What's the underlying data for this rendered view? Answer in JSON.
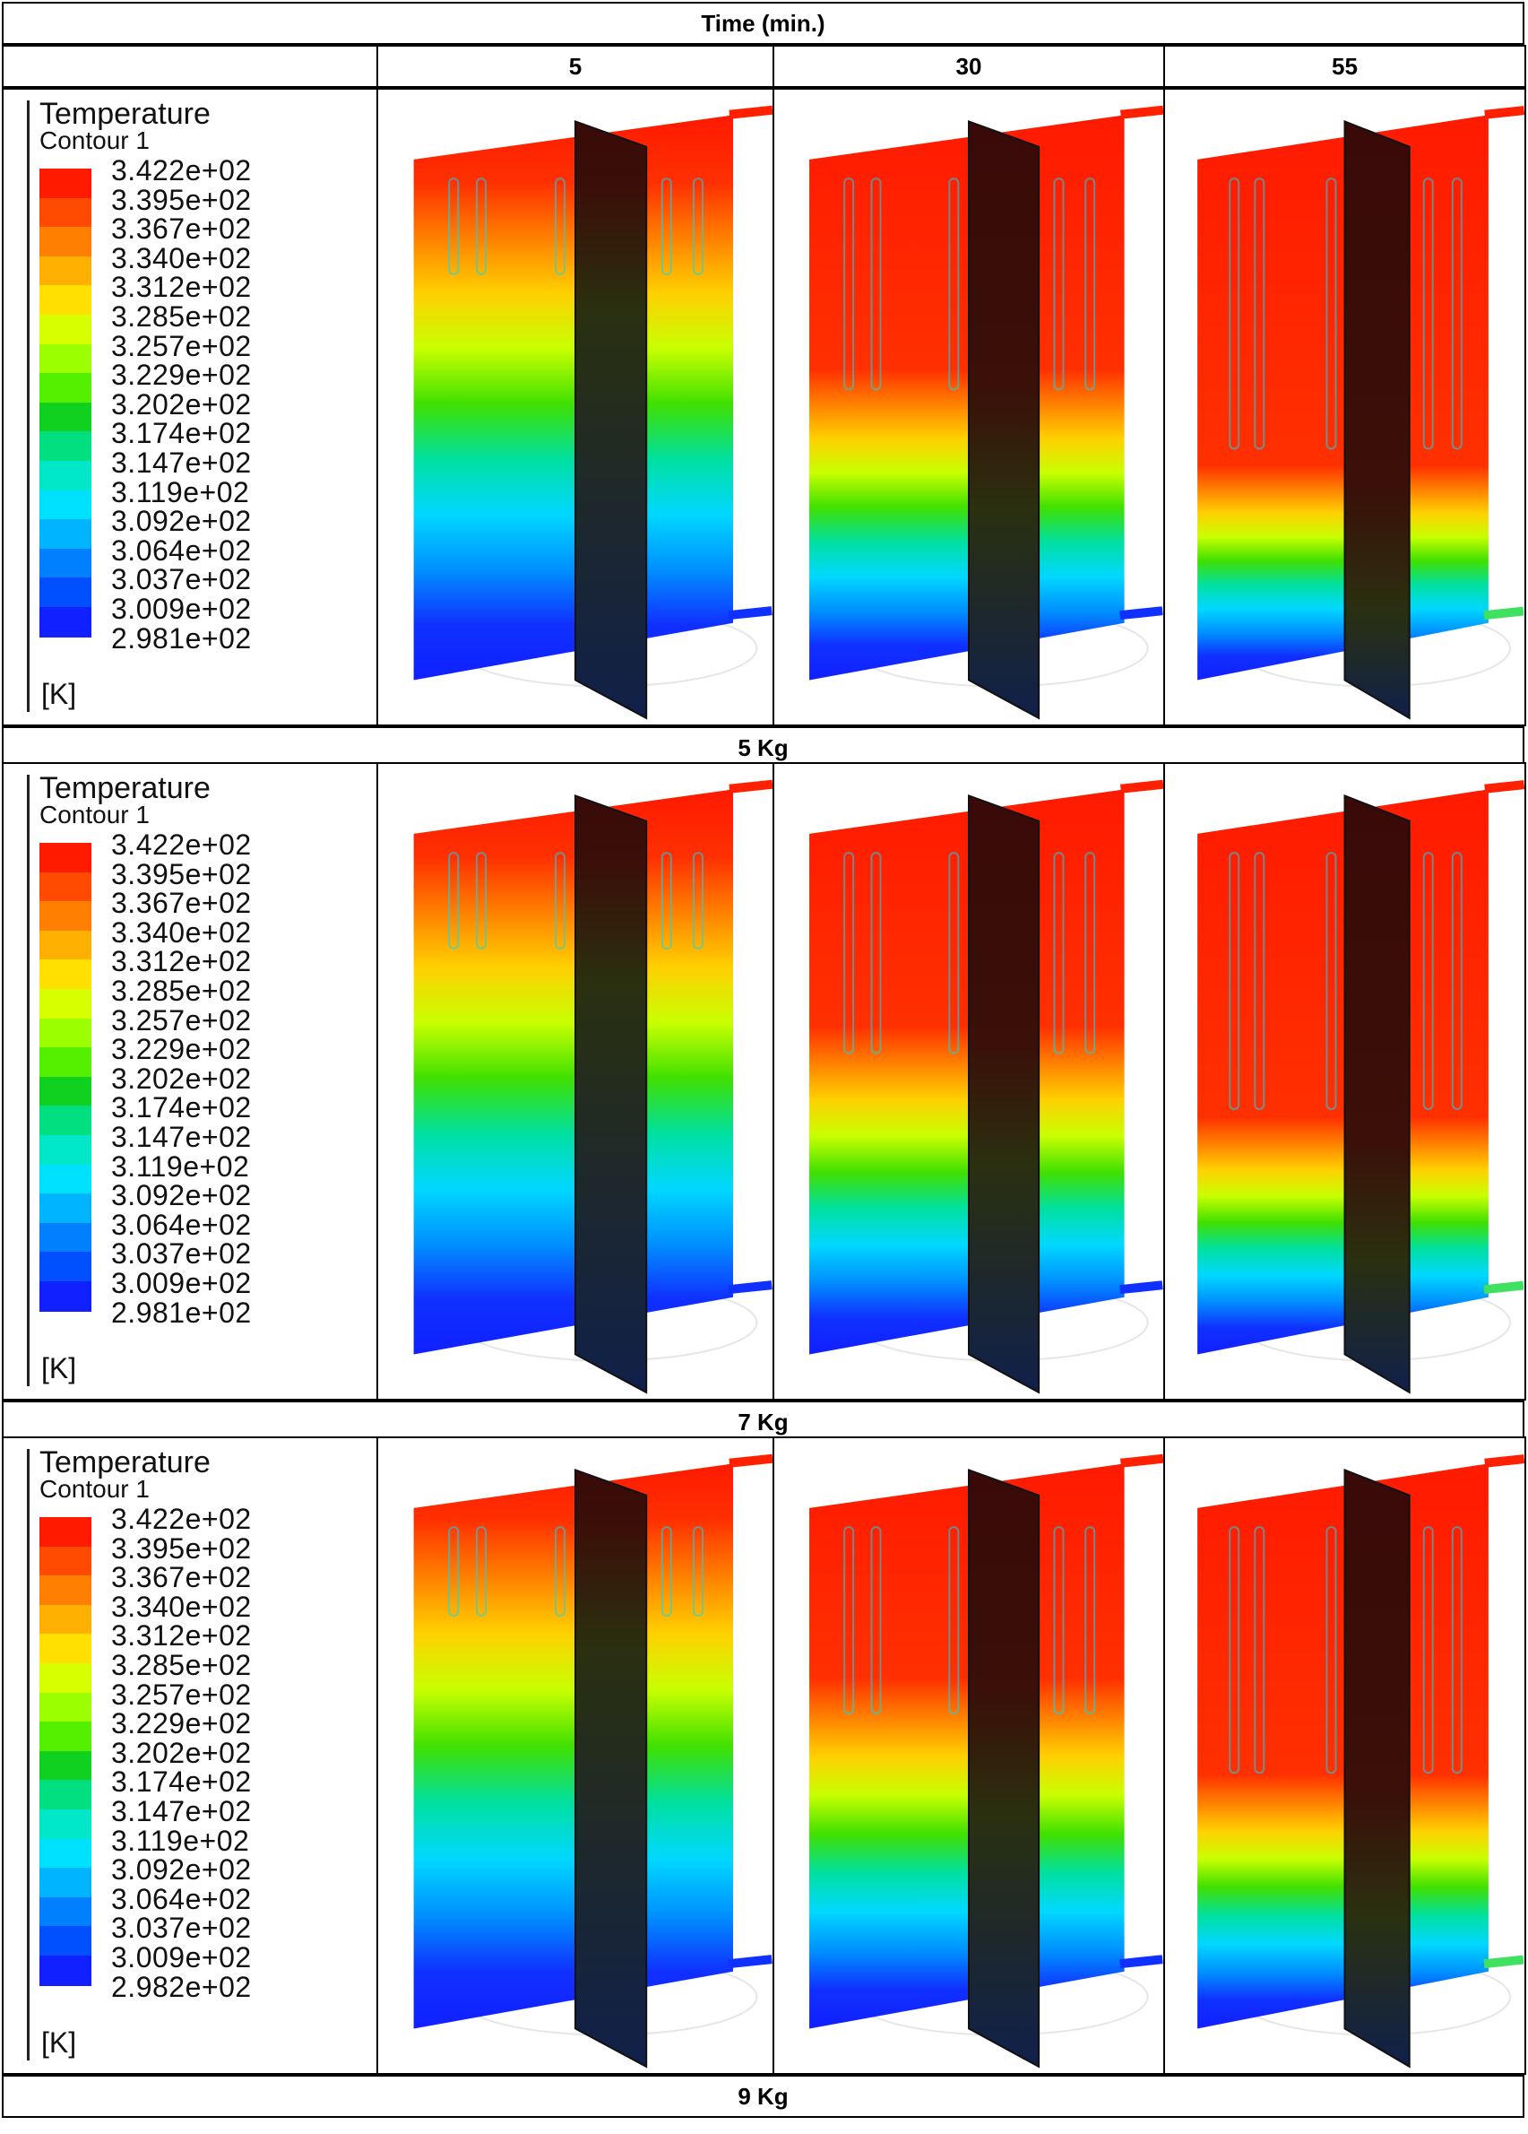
{
  "header": {
    "time_label": "Time (min.)",
    "times": [
      "5",
      "30",
      "55"
    ]
  },
  "legend": {
    "title": "Temperature",
    "subtitle": "Contour 1",
    "unit": "[K]",
    "values": [
      "3.422e+02",
      "3.395e+02",
      "3.367e+02",
      "3.340e+02",
      "3.312e+02",
      "3.285e+02",
      "3.257e+02",
      "3.229e+02",
      "3.202e+02",
      "3.174e+02",
      "3.147e+02",
      "3.119e+02",
      "3.092e+02",
      "3.064e+02",
      "3.037e+02",
      "3.009e+02",
      "2.981e+02"
    ],
    "values_9kg_min": "2.982e+02",
    "colors": [
      "#ff1a00",
      "#ff4a00",
      "#ff8000",
      "#ffb000",
      "#ffe000",
      "#d8ff00",
      "#9cff00",
      "#54f000",
      "#10d020",
      "#00e080",
      "#00e8c8",
      "#00e0ff",
      "#00b4ff",
      "#0080ff",
      "#0050ff",
      "#1020ff"
    ]
  },
  "rows": [
    {
      "label": "5 Kg",
      "min_value_key": "values",
      "snapshots": [
        {
          "time": "5",
          "hot_fraction": 0.12
        },
        {
          "time": "30",
          "hot_fraction": 0.45
        },
        {
          "time": "55",
          "hot_fraction": 0.62
        }
      ]
    },
    {
      "label": "7 Kg",
      "min_value_key": "values",
      "snapshots": [
        {
          "time": "5",
          "hot_fraction": 0.12
        },
        {
          "time": "30",
          "hot_fraction": 0.42
        },
        {
          "time": "55",
          "hot_fraction": 0.58
        }
      ]
    },
    {
      "label": "9 Kg",
      "min_value_key": "values_9kg_min",
      "snapshots": [
        {
          "time": "5",
          "hot_fraction": 0.1
        },
        {
          "time": "30",
          "hot_fraction": 0.38
        },
        {
          "time": "55",
          "hot_fraction": 0.55
        }
      ]
    }
  ]
}
